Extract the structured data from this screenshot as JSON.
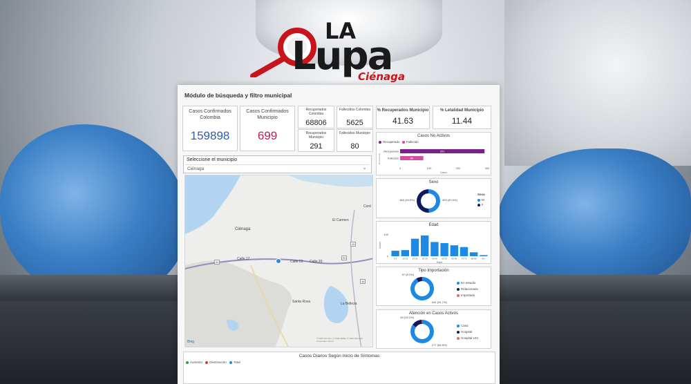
{
  "logo": {
    "main": "Lupa",
    "top": "LA",
    "sub": "Ciénaga"
  },
  "dashboard": {
    "title": "Módulo de búsqueda y filtro municipal",
    "kpis": {
      "casos_colombia": {
        "label": "Casos Confirmados Colombia",
        "value": "159898",
        "color": "#2f5ea8"
      },
      "casos_municipio": {
        "label": "Casos Confirmados Municipio",
        "value": "699",
        "color": "#c2185b"
      },
      "recuperados_colombia": {
        "label": "Recuperados Colombia",
        "value": "68806"
      },
      "fallecidos_colombia": {
        "label": "Fallecidos Colombia",
        "value": "5625"
      },
      "recuperados_municipio": {
        "label": "Recuperados Municipio",
        "value": "291"
      },
      "fallecidos_municipio": {
        "label": "Fallecidos Municipio",
        "value": "80"
      },
      "pct_recuperados": {
        "label": "% Recuperados Municipio",
        "value": "41.63"
      },
      "pct_letalidad": {
        "label": "% Letalidad Municipio",
        "value": "11.44"
      }
    },
    "select": {
      "label": "Seleccione el municipio",
      "value": "Ciénaga"
    },
    "map": {
      "labels": [
        "Ciénaga",
        "El Carmen",
        "Calle 17",
        "Calle 20",
        "Calle 20",
        "Santa Rosa",
        "La Belleza",
        "Cord"
      ],
      "attribution": "© 2020 TomTom, © 2020 HERE, © 2020 Microsoft Corporation Terms",
      "brand": "Bing",
      "route_numbers": [
        "90",
        "90",
        "45",
        "45"
      ]
    },
    "bottom": {
      "title": "Casos Diarios Según Inicio de Síntomas",
      "legend": [
        {
          "name": "Aumento",
          "color": "#2e9e3f"
        },
        {
          "name": "Disminución",
          "color": "#d63a3a"
        },
        {
          "name": "Total",
          "color": "#1e88e5"
        }
      ]
    }
  },
  "chart_data": [
    {
      "type": "bar",
      "title": "Casos No Activos",
      "orientation": "horizontal",
      "categories": [
        "Recuperado",
        "Fallecido"
      ],
      "values": [
        291,
        80
      ],
      "colors": [
        "#7b1f8e",
        "#d64aa8"
      ],
      "legend": [
        {
          "name": "Recuperado",
          "color": "#7b1f8e"
        },
        {
          "name": "Fallecido",
          "color": "#d64aa8"
        }
      ],
      "xticks": [
        "0",
        "100",
        "200",
        "300"
      ],
      "xlim": [
        0,
        300
      ],
      "xlabel": "Casos",
      "ylabel": "Recuperado"
    },
    {
      "type": "pie",
      "title": "Sexo",
      "donut": true,
      "slices": [
        {
          "name": "M",
          "value": 346,
          "pct": "49.5%",
          "color": "#1e88e5"
        },
        {
          "name": "F",
          "value": 353,
          "pct": "50.5%",
          "color": "#0d1b5e"
        }
      ],
      "labels": [
        "346 (49.5%)",
        "353 (50.5%)"
      ],
      "legend_title": "Sexo"
    },
    {
      "type": "bar",
      "title": "Edad",
      "categories": [
        "0-9",
        "10-19",
        "20-29",
        "30-39",
        "40-49",
        "50-59",
        "60-69",
        "70-79",
        "80-89",
        "90+"
      ],
      "values": [
        25,
        28,
        80,
        95,
        65,
        60,
        50,
        42,
        18,
        5
      ],
      "color": "#1e88e5",
      "yticks": [
        "0",
        "100"
      ],
      "ylim": [
        0,
        120
      ],
      "xlabel": "Edad",
      "ylabel": "Casos"
    },
    {
      "type": "pie",
      "title": "Tipo Importación",
      "donut": true,
      "slices": [
        {
          "name": "En estudio",
          "value": 641,
          "pct": "91.7%",
          "color": "#1e88e5"
        },
        {
          "name": "Relacionado",
          "value": 57,
          "pct": "8.2%",
          "color": "#0d1b5e"
        },
        {
          "name": "Importado",
          "value": 1,
          "pct": "0.1%",
          "color": "#e66b6b"
        }
      ],
      "labels": [
        "57 (8.2%)",
        "641 (91.7%)"
      ]
    },
    {
      "type": "pie",
      "title": "Atención en Casos Activos",
      "donut": true,
      "slices": [
        {
          "name": "Casa",
          "value": 277,
          "pct": "84.8%",
          "color": "#1e88e5"
        },
        {
          "name": "Hospital",
          "value": 48,
          "pct": "14.7%",
          "color": "#0d1b5e"
        },
        {
          "name": "Hospital UCI",
          "value": 2,
          "pct": "0.6%",
          "color": "#e66b6b"
        }
      ],
      "labels": [
        "50 (15.2%)",
        "277 (84.8%)"
      ]
    }
  ]
}
